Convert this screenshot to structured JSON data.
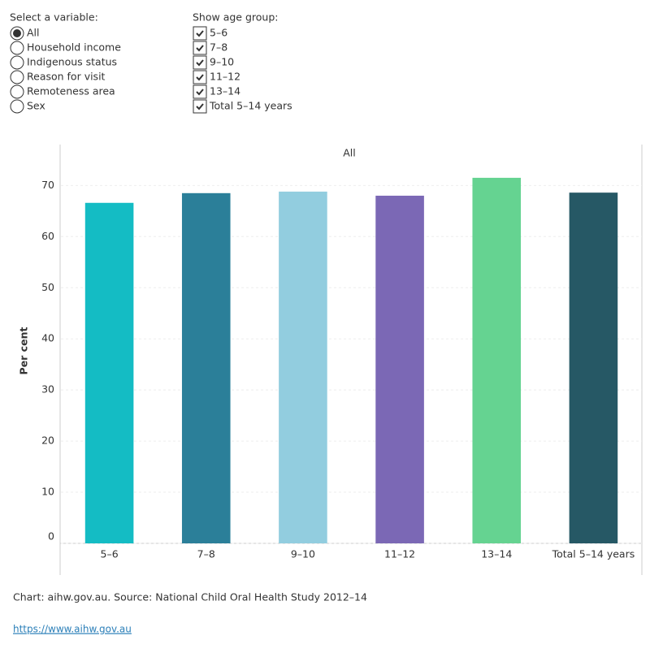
{
  "controls": {
    "variable": {
      "label": "Select a variable:",
      "options": [
        "All",
        "Household income",
        "Indigenous status",
        "Reason for visit",
        "Remoteness area",
        "Sex"
      ]
    },
    "age_group": {
      "label": "Show age group:",
      "options": [
        "5–6",
        "7–8",
        "9–10",
        "11–12",
        "13–14",
        "Total 5–14 years"
      ]
    }
  },
  "chart_data": {
    "type": "bar",
    "title": "All",
    "y_label": "Per cent",
    "categories": [
      "5–6",
      "7–8",
      "9–10",
      "11–12",
      "13–14",
      "Total 5–14 years"
    ],
    "values": [
      66.6,
      68.5,
      68.8,
      68.0,
      71.5,
      68.6
    ],
    "colors": [
      "#14bcc4",
      "#2b7f99",
      "#92cddf",
      "#7b68b5",
      "#65d391",
      "#265865"
    ],
    "ylim": [
      0,
      78
    ],
    "yticks": [
      0,
      10,
      20,
      30,
      40,
      50,
      60,
      70
    ],
    "grid": true
  },
  "footer": {
    "source": "Chart: aihw.gov.au. Source: National Child Oral Health Study 2012–14",
    "link": "https://www.aihw.gov.au"
  }
}
